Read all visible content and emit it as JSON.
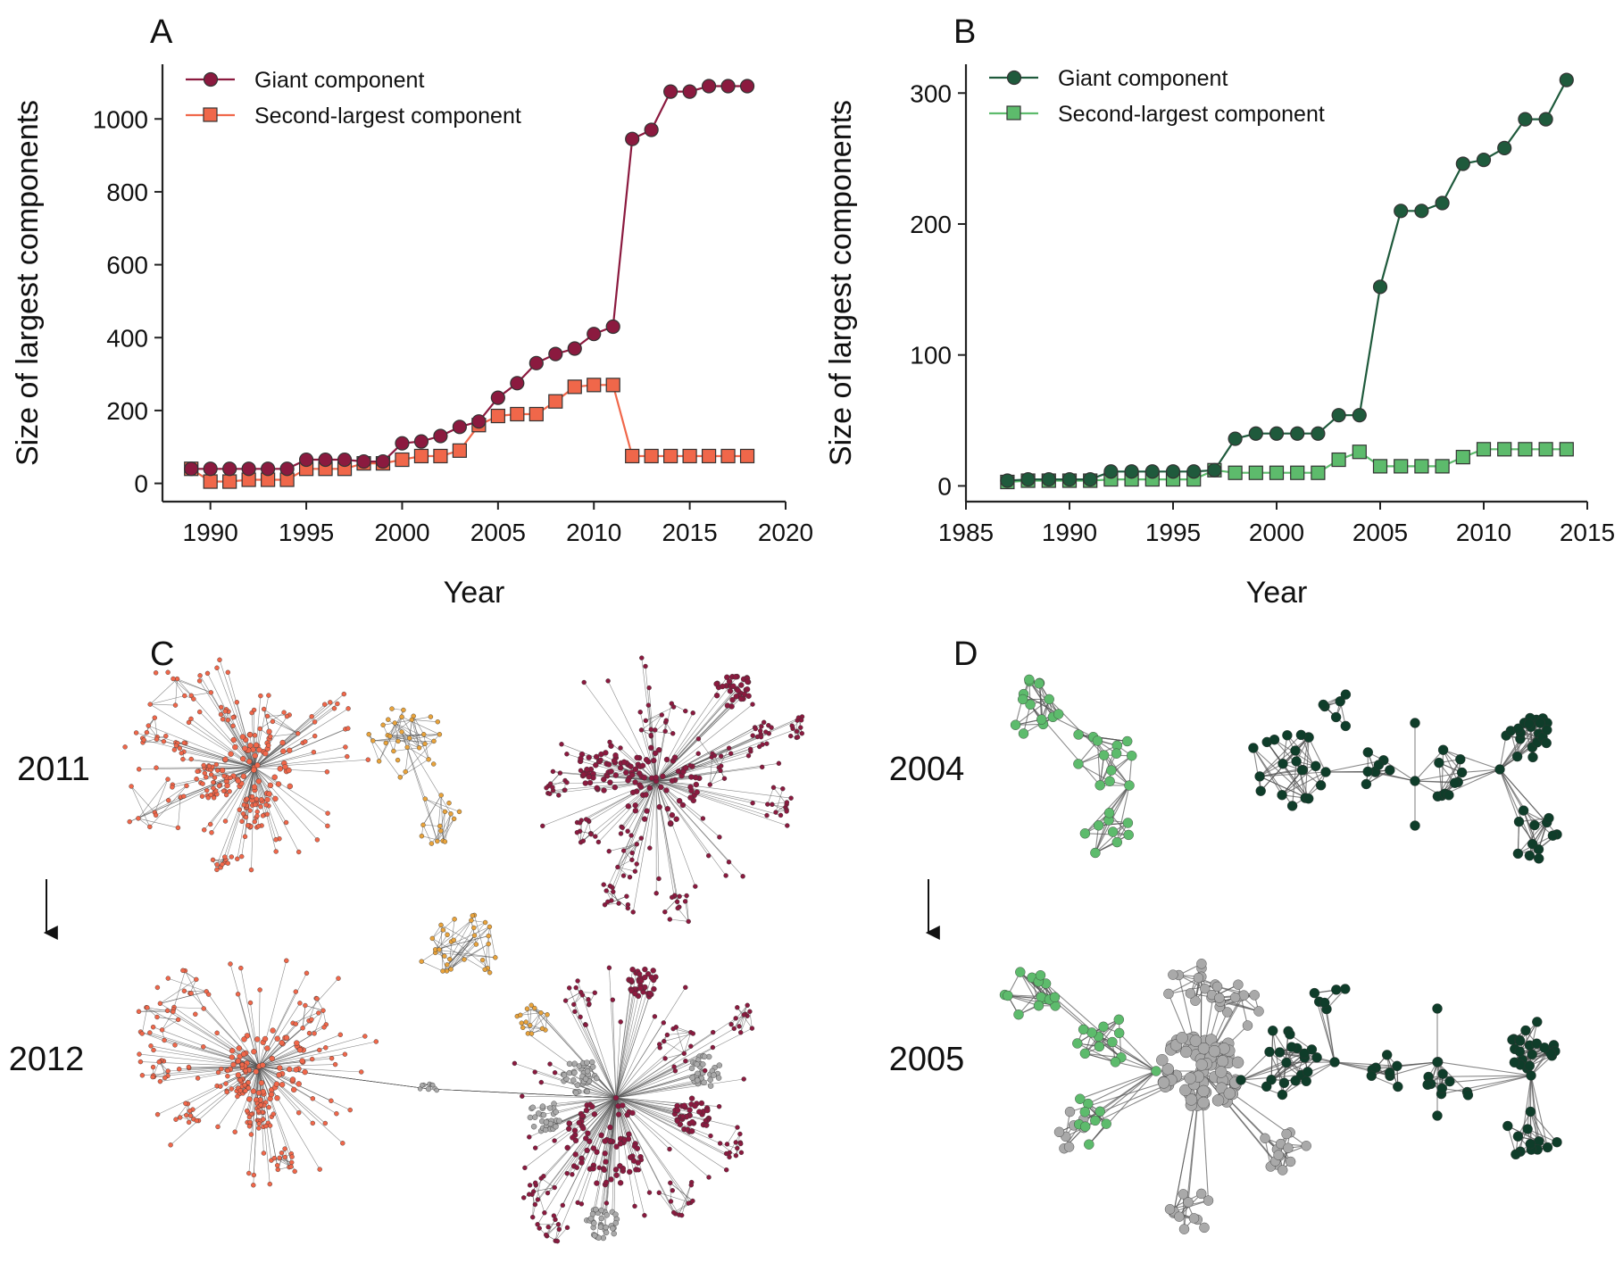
{
  "panels": {
    "a": "A",
    "b": "B",
    "c": "C",
    "d": "D"
  },
  "network_years": {
    "c_top": "2011",
    "c_bottom": "2012",
    "d_top": "2004",
    "d_bottom": "2005"
  },
  "colors": {
    "giant_a": "#8b1a3f",
    "second_a": "#f0674a",
    "giant_b": "#1f5a3c",
    "second_b": "#5dbb6c",
    "yellow_cluster": "#e8a33c",
    "gray_cluster": "#a9a9a9",
    "dark_green_cluster": "#0f3d2a"
  },
  "chart_data": [
    {
      "type": "line",
      "panel": "A",
      "xlabel": "Year",
      "ylabel": "Size of largest components",
      "xlim": [
        1987.5,
        2020
      ],
      "ylim": [
        -50,
        1150
      ],
      "xticks": [
        1990,
        1995,
        2000,
        2005,
        2010,
        2015,
        2020
      ],
      "yticks": [
        0,
        200,
        400,
        600,
        800,
        1000
      ],
      "grid": false,
      "legend": "top-left",
      "series": [
        {
          "name": "Giant component",
          "marker": "circle",
          "color": "#8b1a3f",
          "x": [
            1989,
            1990,
            1991,
            1992,
            1993,
            1994,
            1995,
            1996,
            1997,
            1998,
            1999,
            2000,
            2001,
            2002,
            2003,
            2004,
            2005,
            2006,
            2007,
            2008,
            2009,
            2010,
            2011,
            2012,
            2013,
            2014,
            2015,
            2016,
            2017,
            2018
          ],
          "values": [
            40,
            40,
            40,
            40,
            40,
            40,
            65,
            65,
            65,
            60,
            60,
            110,
            115,
            130,
            155,
            170,
            235,
            275,
            330,
            355,
            370,
            410,
            430,
            945,
            970,
            1075,
            1075,
            1090,
            1090,
            1090
          ]
        },
        {
          "name": "Second-largest component",
          "marker": "square",
          "color": "#f0674a",
          "x": [
            1989,
            1990,
            1991,
            1992,
            1993,
            1994,
            1995,
            1996,
            1997,
            1998,
            1999,
            2000,
            2001,
            2002,
            2003,
            2004,
            2005,
            2006,
            2007,
            2008,
            2009,
            2010,
            2011,
            2012,
            2013,
            2014,
            2015,
            2016,
            2017,
            2018
          ],
          "values": [
            40,
            5,
            5,
            10,
            10,
            10,
            40,
            40,
            40,
            55,
            55,
            65,
            75,
            75,
            90,
            160,
            185,
            190,
            190,
            225,
            265,
            270,
            270,
            75,
            75,
            75,
            75,
            75,
            75,
            75
          ]
        }
      ]
    },
    {
      "type": "line",
      "panel": "B",
      "xlabel": "Year",
      "ylabel": "Size of largest components",
      "xlim": [
        1985,
        2015
      ],
      "ylim": [
        -12,
        322
      ],
      "xticks": [
        1985,
        1990,
        1995,
        2000,
        2005,
        2010,
        2015
      ],
      "yticks": [
        0,
        100,
        200,
        300
      ],
      "grid": false,
      "legend": "top-left",
      "series": [
        {
          "name": "Giant component",
          "marker": "circle",
          "color": "#1f5a3c",
          "x": [
            1987,
            1988,
            1989,
            1990,
            1991,
            1992,
            1993,
            1994,
            1995,
            1996,
            1997,
            1998,
            1999,
            2000,
            2001,
            2002,
            2003,
            2004,
            2005,
            2006,
            2007,
            2008,
            2009,
            2010,
            2011,
            2012,
            2013,
            2014
          ],
          "values": [
            4,
            5,
            5,
            5,
            5,
            11,
            11,
            11,
            11,
            11,
            12,
            36,
            40,
            40,
            40,
            40,
            54,
            54,
            152,
            210,
            210,
            216,
            246,
            249,
            258,
            280,
            280,
            310
          ]
        },
        {
          "name": "Second-largest component",
          "marker": "square",
          "color": "#5dbb6c",
          "x": [
            1987,
            1988,
            1989,
            1990,
            1991,
            1992,
            1993,
            1994,
            1995,
            1996,
            1997,
            1998,
            1999,
            2000,
            2001,
            2002,
            2003,
            2004,
            2005,
            2006,
            2007,
            2008,
            2009,
            2010,
            2011,
            2012,
            2013,
            2014
          ],
          "values": [
            3,
            4,
            4,
            4,
            4,
            5,
            5,
            5,
            5,
            5,
            12,
            10,
            10,
            10,
            10,
            10,
            20,
            26,
            15,
            15,
            15,
            15,
            22,
            28,
            28,
            28,
            28,
            28
          ]
        }
      ]
    }
  ]
}
